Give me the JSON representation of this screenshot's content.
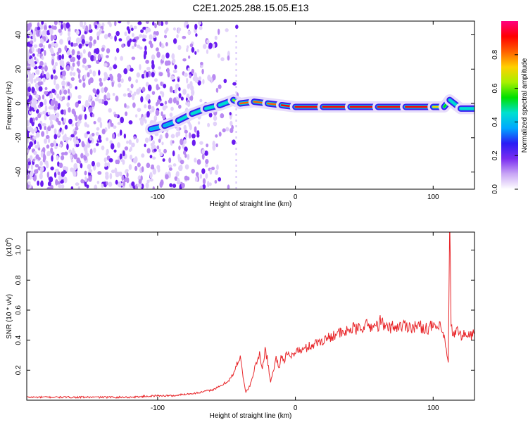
{
  "title": "C2E1.2025.288.15.05.E13",
  "colors": {
    "snr_line": "#e8262a",
    "frame": "#000000",
    "colorbar_stops": [
      "#ffffff",
      "#c9a6f5",
      "#7a2cf0",
      "#2a1cf5",
      "#00a8ff",
      "#00e0d0",
      "#00e000",
      "#a8f000",
      "#ffd000",
      "#ff6000",
      "#ff0000",
      "#ff0080"
    ]
  },
  "chart_data": [
    {
      "type": "heatmap",
      "name": "spectrogram",
      "xlabel": "Height of straight line (km)",
      "ylabel": "Frequency (Hz)",
      "xlim": [
        -195,
        130
      ],
      "ylim": [
        -50,
        48
      ],
      "xticks": [
        -100,
        0,
        100
      ],
      "xtick_labels": [
        "-100",
        "0",
        "100"
      ],
      "yticks": [
        -40,
        -20,
        0,
        20,
        40
      ],
      "ytick_labels": [
        "-40",
        "-20",
        "0",
        "20",
        "40"
      ],
      "ridge": {
        "x": [
          -105,
          -95,
          -85,
          -75,
          -65,
          -55,
          -45,
          -40,
          -30,
          -20,
          -10,
          0,
          20,
          40,
          60,
          80,
          100,
          108,
          112,
          120,
          130
        ],
        "freq": [
          -15,
          -13,
          -10,
          -6,
          -3,
          -1,
          2,
          0,
          1,
          0,
          -1,
          -2,
          -2,
          -2,
          -2,
          -2,
          -2,
          -2,
          2,
          -3,
          -3
        ],
        "amplitude": [
          0.35,
          0.35,
          0.4,
          0.45,
          0.5,
          0.45,
          0.5,
          0.75,
          0.8,
          0.85,
          0.85,
          0.9,
          0.9,
          0.95,
          0.95,
          0.9,
          0.85,
          0.6,
          0.5,
          0.45,
          0.4
        ]
      },
      "colorbar": {
        "label": "Normalized spectral amplitude",
        "range": [
          0,
          1
        ],
        "ticks": [
          0.0,
          0.2,
          0.4,
          0.6,
          0.8
        ],
        "tick_labels": [
          "0.0",
          "0.2",
          "0.4",
          "0.6",
          "0.8"
        ]
      }
    },
    {
      "type": "line",
      "name": "snr",
      "xlabel": "Height of straight line (km)",
      "ylabel": "SNR (10 * v/v)",
      "scale_label": "(x10",
      "scale_exponent": "4",
      "scale_suffix": ")",
      "xlim": [
        -195,
        130
      ],
      "ylim": [
        0,
        1.12
      ],
      "xticks": [
        -100,
        0,
        100
      ],
      "xtick_labels": [
        "-100",
        "0",
        "100"
      ],
      "yticks": [
        0.2,
        0.4,
        0.6,
        0.8,
        1.0
      ],
      "ytick_labels": [
        "0.2",
        "0.4",
        "0.6",
        "0.8",
        "1.0"
      ],
      "series": [
        {
          "name": "SNR",
          "x": [
            -195,
            -180,
            -160,
            -140,
            -120,
            -100,
            -92,
            -88,
            -80,
            -70,
            -60,
            -55,
            -50,
            -45,
            -42,
            -40,
            -38,
            -36,
            -34,
            -32,
            -30,
            -28,
            -26,
            -24,
            -22,
            -20,
            -18,
            -16,
            -14,
            -12,
            -10,
            -8,
            -6,
            -4,
            -2,
            0,
            5,
            10,
            15,
            20,
            25,
            30,
            35,
            40,
            45,
            50,
            55,
            60,
            62,
            65,
            70,
            75,
            80,
            85,
            90,
            95,
            100,
            105,
            108,
            110,
            111,
            112,
            113,
            114,
            115,
            118,
            120,
            125,
            130
          ],
          "y": [
            0.02,
            0.02,
            0.02,
            0.02,
            0.02,
            0.03,
            0.03,
            0.03,
            0.04,
            0.05,
            0.07,
            0.09,
            0.12,
            0.17,
            0.25,
            0.3,
            0.16,
            0.05,
            0.08,
            0.12,
            0.2,
            0.26,
            0.3,
            0.2,
            0.35,
            0.25,
            0.12,
            0.2,
            0.28,
            0.22,
            0.3,
            0.27,
            0.31,
            0.28,
            0.3,
            0.33,
            0.33,
            0.36,
            0.38,
            0.4,
            0.42,
            0.45,
            0.44,
            0.48,
            0.47,
            0.5,
            0.49,
            0.5,
            0.53,
            0.48,
            0.49,
            0.49,
            0.5,
            0.49,
            0.49,
            0.48,
            0.49,
            0.48,
            0.42,
            0.3,
            0.24,
            1.15,
            0.5,
            0.46,
            0.44,
            0.46,
            0.44,
            0.43,
            0.44
          ]
        }
      ]
    }
  ]
}
